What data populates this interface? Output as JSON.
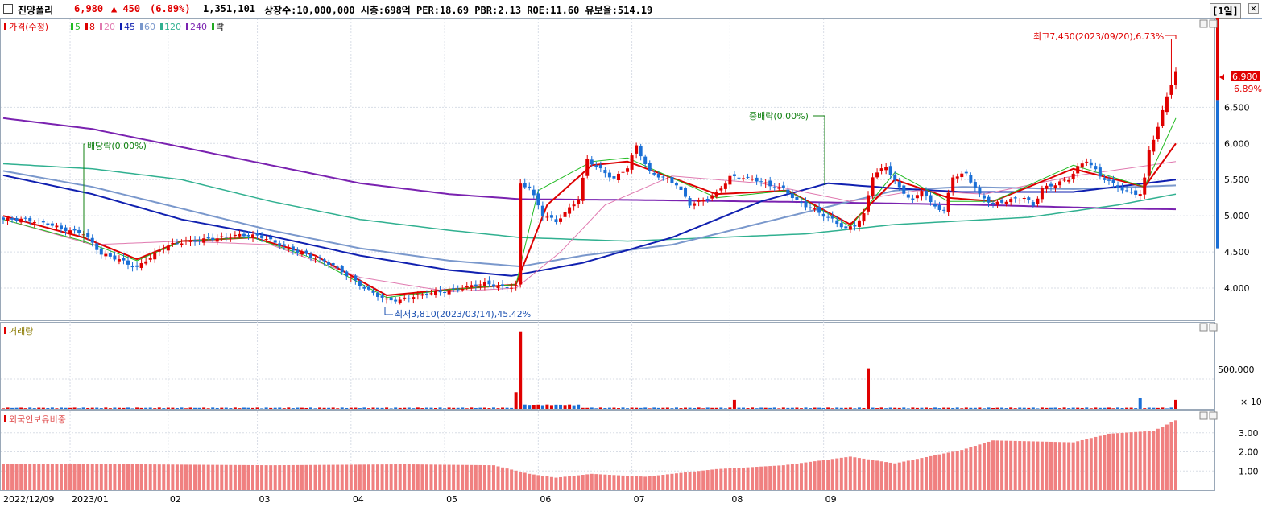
{
  "header": {
    "name": "진양폴리",
    "price": "6,980",
    "change": "▲  450",
    "change_pct": "(6.89%)",
    "volume": "1,351,101",
    "stats": "상장수:10,000,000 시총:698억 PER:18.69 PBR:2.13 ROE:11.60 유보율:514.19",
    "period": "[1일]",
    "close_glyph": "✕"
  },
  "legend": {
    "price_label": "가격(수정)",
    "ma": [
      {
        "label": "5",
        "color": "#22bb22"
      },
      {
        "label": "8",
        "color": "#dd0000"
      },
      {
        "label": "20",
        "color": "#e07ab0"
      },
      {
        "label": "45",
        "color": "#1020b0"
      },
      {
        "label": "60",
        "color": "#7a98cc"
      },
      {
        "label": "120",
        "color": "#30b090"
      },
      {
        "label": "240",
        "color": "#7a22b0"
      }
    ],
    "event_label": "락"
  },
  "annotations": {
    "high": "최고7,450(2023/09/20),6.73%",
    "low": "최저3,810(2023/03/14),45.42%",
    "dividend": "배당락(0.00%)",
    "bonus": "중배락(0.00%)"
  },
  "price_tag": {
    "price": "6,980",
    "pct": "6.89%"
  },
  "volume_panel": {
    "title": "거래량",
    "tick": "500,000",
    "multiplier": "× 10"
  },
  "foreign_panel": {
    "title": "외국인보유비중"
  },
  "colors": {
    "up": "#e00000",
    "down": "#1a6fd6",
    "ratio_bar": "#f08080"
  },
  "chart_data": {
    "type": "bar",
    "title": "",
    "price_axis": {
      "ticks": [
        "6,500",
        "6,000",
        "5,500",
        "5,000",
        "4,500",
        "4,000"
      ],
      "values": [
        6500,
        6000,
        5500,
        5000,
        4500,
        4000
      ],
      "range": [
        3600,
        7650
      ]
    },
    "x_labels": [
      "2022/12/09",
      "2023/01",
      "02",
      "03",
      "04",
      "05",
      "06",
      "07",
      "08",
      "09"
    ],
    "price_path": [
      [
        0,
        4950
      ],
      [
        10,
        4900
      ],
      [
        18,
        4750
      ],
      [
        22,
        4450
      ],
      [
        26,
        4400
      ],
      [
        30,
        4300
      ],
      [
        32,
        4400
      ],
      [
        36,
        4550
      ],
      [
        40,
        4620
      ],
      [
        46,
        4700
      ],
      [
        52,
        4720
      ],
      [
        58,
        4700
      ],
      [
        62,
        4620
      ],
      [
        66,
        4520
      ],
      [
        70,
        4400
      ],
      [
        74,
        4300
      ],
      [
        78,
        4150
      ],
      [
        82,
        3980
      ],
      [
        86,
        3830
      ],
      [
        89,
        3810
      ],
      [
        92,
        3880
      ],
      [
        96,
        3950
      ],
      [
        100,
        3980
      ],
      [
        104,
        4000
      ],
      [
        108,
        4050
      ],
      [
        112,
        4020
      ],
      [
        115,
        4050
      ],
      [
        116,
        5450
      ],
      [
        118,
        5400
      ],
      [
        121,
        5000
      ],
      [
        124,
        4900
      ],
      [
        127,
        5100
      ],
      [
        129,
        5250
      ],
      [
        131,
        5800
      ],
      [
        134,
        5650
      ],
      [
        137,
        5500
      ],
      [
        140,
        5650
      ],
      [
        142,
        5950
      ],
      [
        145,
        5600
      ],
      [
        148,
        5550
      ],
      [
        151,
        5450
      ],
      [
        154,
        5150
      ],
      [
        157,
        5200
      ],
      [
        160,
        5300
      ],
      [
        163,
        5550
      ],
      [
        166,
        5550
      ],
      [
        169,
        5500
      ],
      [
        172,
        5400
      ],
      [
        175,
        5350
      ],
      [
        178,
        5200
      ],
      [
        182,
        5100
      ],
      [
        186,
        4950
      ],
      [
        189,
        4800
      ],
      [
        191,
        4850
      ],
      [
        193,
        5000
      ],
      [
        195,
        5550
      ],
      [
        198,
        5700
      ],
      [
        201,
        5400
      ],
      [
        204,
        5200
      ],
      [
        206,
        5350
      ],
      [
        208,
        5150
      ],
      [
        211,
        5050
      ],
      [
        213,
        5550
      ],
      [
        216,
        5600
      ],
      [
        219,
        5300
      ],
      [
        222,
        5150
      ],
      [
        226,
        5200
      ],
      [
        229,
        5250
      ],
      [
        231,
        5150
      ],
      [
        233,
        5400
      ],
      [
        236,
        5450
      ],
      [
        239,
        5500
      ],
      [
        241,
        5650
      ],
      [
        243,
        5750
      ],
      [
        246,
        5550
      ],
      [
        249,
        5450
      ],
      [
        252,
        5350
      ],
      [
        255,
        5300
      ],
      [
        256,
        5500
      ],
      [
        257,
        5900
      ],
      [
        259,
        6200
      ],
      [
        261,
        6650
      ],
      [
        263,
        6980
      ]
    ],
    "high_low_points": [
      {
        "x": 262,
        "value": 7450,
        "date": "2023/09/20"
      },
      {
        "x": 89,
        "value": 3810,
        "date": "2023/03/14"
      }
    ],
    "ma_paths": {
      "240": [
        [
          0,
          6350
        ],
        [
          20,
          6200
        ],
        [
          40,
          5950
        ],
        [
          60,
          5700
        ],
        [
          80,
          5450
        ],
        [
          100,
          5300
        ],
        [
          116,
          5230
        ],
        [
          140,
          5220
        ],
        [
          180,
          5190
        ],
        [
          220,
          5150
        ],
        [
          250,
          5100
        ],
        [
          263,
          5090
        ]
      ],
      "120": [
        [
          0,
          5720
        ],
        [
          20,
          5650
        ],
        [
          40,
          5500
        ],
        [
          60,
          5200
        ],
        [
          80,
          4950
        ],
        [
          100,
          4800
        ],
        [
          116,
          4700
        ],
        [
          140,
          4650
        ],
        [
          180,
          4750
        ],
        [
          200,
          4880
        ],
        [
          230,
          4980
        ],
        [
          250,
          5150
        ],
        [
          263,
          5300
        ]
      ],
      "60": [
        [
          0,
          5620
        ],
        [
          20,
          5400
        ],
        [
          40,
          5100
        ],
        [
          60,
          4800
        ],
        [
          80,
          4550
        ],
        [
          100,
          4380
        ],
        [
          116,
          4300
        ],
        [
          130,
          4450
        ],
        [
          150,
          4600
        ],
        [
          180,
          5050
        ],
        [
          200,
          5350
        ],
        [
          215,
          5400
        ],
        [
          240,
          5370
        ],
        [
          263,
          5420
        ]
      ],
      "45": [
        [
          0,
          5560
        ],
        [
          20,
          5300
        ],
        [
          40,
          4950
        ],
        [
          60,
          4720
        ],
        [
          80,
          4450
        ],
        [
          100,
          4250
        ],
        [
          114,
          4170
        ],
        [
          130,
          4350
        ],
        [
          150,
          4700
        ],
        [
          170,
          5200
        ],
        [
          185,
          5450
        ],
        [
          200,
          5380
        ],
        [
          215,
          5330
        ],
        [
          240,
          5330
        ],
        [
          263,
          5500
        ]
      ],
      "20": [
        [
          0,
          4950
        ],
        [
          20,
          4600
        ],
        [
          40,
          4650
        ],
        [
          60,
          4600
        ],
        [
          80,
          4150
        ],
        [
          100,
          3950
        ],
        [
          115,
          4000
        ],
        [
          125,
          4500
        ],
        [
          135,
          5150
        ],
        [
          150,
          5550
        ],
        [
          170,
          5450
        ],
        [
          190,
          5200
        ],
        [
          205,
          5350
        ],
        [
          220,
          5300
        ],
        [
          240,
          5550
        ],
        [
          263,
          5750
        ]
      ],
      "8": [
        [
          0,
          5000
        ],
        [
          18,
          4700
        ],
        [
          30,
          4400
        ],
        [
          40,
          4650
        ],
        [
          56,
          4700
        ],
        [
          70,
          4450
        ],
        [
          86,
          3900
        ],
        [
          100,
          3980
        ],
        [
          115,
          4050
        ],
        [
          122,
          5150
        ],
        [
          132,
          5700
        ],
        [
          140,
          5750
        ],
        [
          160,
          5300
        ],
        [
          176,
          5350
        ],
        [
          190,
          4880
        ],
        [
          200,
          5500
        ],
        [
          212,
          5250
        ],
        [
          222,
          5200
        ],
        [
          240,
          5650
        ],
        [
          256,
          5400
        ],
        [
          263,
          6000
        ]
      ],
      "5": [
        [
          0,
          4950
        ],
        [
          18,
          4650
        ],
        [
          30,
          4380
        ],
        [
          40,
          4650
        ],
        [
          56,
          4700
        ],
        [
          70,
          4400
        ],
        [
          86,
          3870
        ],
        [
          100,
          3980
        ],
        [
          115,
          4050
        ],
        [
          120,
          5350
        ],
        [
          132,
          5750
        ],
        [
          140,
          5800
        ],
        [
          160,
          5250
        ],
        [
          176,
          5350
        ],
        [
          190,
          4850
        ],
        [
          200,
          5600
        ],
        [
          212,
          5200
        ],
        [
          222,
          5200
        ],
        [
          240,
          5700
        ],
        [
          256,
          5400
        ],
        [
          263,
          6350
        ]
      ]
    },
    "volume_spikes": [
      {
        "x": 116,
        "value": 1300000
      },
      {
        "x": 115,
        "value": 280000
      },
      {
        "x": 194,
        "value": 680000
      },
      {
        "x": 164,
        "value": 150000
      },
      {
        "x": 255,
        "value": 180000
      },
      {
        "x": 263,
        "value": 150000
      }
    ],
    "foreign_ratio_path": [
      [
        0,
        1.35
      ],
      [
        30,
        1.35
      ],
      [
        60,
        1.3
      ],
      [
        90,
        1.35
      ],
      [
        110,
        1.3
      ],
      [
        118,
        0.85
      ],
      [
        124,
        0.65
      ],
      [
        132,
        0.85
      ],
      [
        144,
        0.7
      ],
      [
        160,
        1.1
      ],
      [
        175,
        1.3
      ],
      [
        190,
        1.75
      ],
      [
        200,
        1.4
      ],
      [
        215,
        2.1
      ],
      [
        222,
        2.6
      ],
      [
        240,
        2.5
      ],
      [
        248,
        2.95
      ],
      [
        258,
        3.1
      ],
      [
        263,
        3.65
      ]
    ],
    "foreign_axis": {
      "ticks": [
        "3.00",
        "2.00",
        "1.00"
      ],
      "values": [
        3,
        2,
        1
      ],
      "range": [
        0,
        4
      ]
    }
  }
}
